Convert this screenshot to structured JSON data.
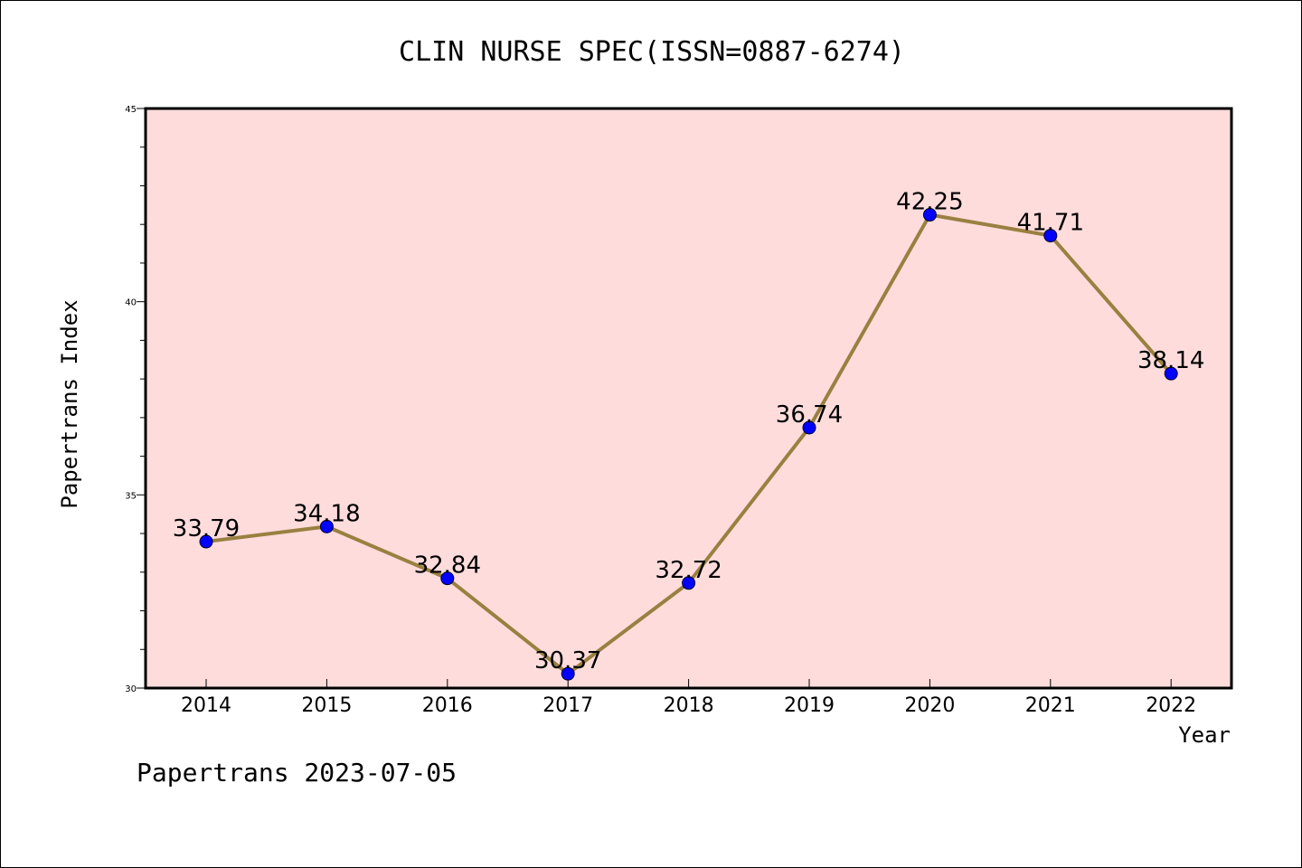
{
  "chart_data": {
    "type": "line",
    "title": "CLIN NURSE SPEC(ISSN=0887-6274)",
    "xlabel": "Year",
    "ylabel": "Papertrans Index",
    "categories": [
      "2014",
      "2015",
      "2016",
      "2017",
      "2018",
      "2019",
      "2020",
      "2021",
      "2022"
    ],
    "values": [
      33.79,
      34.18,
      32.84,
      30.37,
      32.72,
      36.74,
      42.25,
      41.71,
      38.14
    ],
    "data_labels": [
      "33.79",
      "34.18",
      "32.84",
      "30.37",
      "32.72",
      "36.74",
      "42.25",
      "41.71",
      "38.14"
    ],
    "ylim": [
      30,
      45
    ],
    "yticks": [
      30,
      35,
      40,
      45
    ],
    "grid": false,
    "colors": {
      "plot_background": "#ffdcdc",
      "line": "#9a8040",
      "marker": "#0000ff"
    }
  },
  "footer": "Papertrans 2023-07-05"
}
